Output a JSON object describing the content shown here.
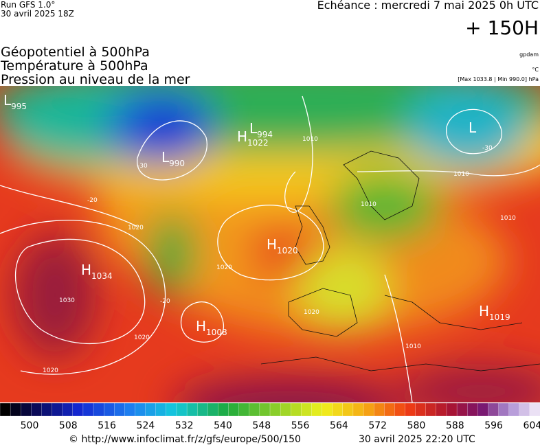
{
  "header": {
    "run": "Run GFS 1.0°",
    "date": "30 avril 2025 18Z",
    "echeance": "Echéance : mercredi 7 mai 2025 0h UTC",
    "lead": "+ 150H"
  },
  "fields": [
    "Géopotentiel à 500hPa",
    "Température à 500hPa",
    "Pression au niveau de la mer"
  ],
  "units": {
    "geopotential": "gpdam",
    "temperature": "°C",
    "pressure": "[Max 1033.8 | Min 990.0] hPa"
  },
  "map": {
    "centers": [
      {
        "type": "L",
        "value": "995"
      },
      {
        "type": "L",
        "value": "990"
      },
      {
        "type": "H",
        "value": "1022"
      },
      {
        "type": "L",
        "value": "994"
      },
      {
        "type": "L"
      },
      {
        "type": "H",
        "value": "1034"
      },
      {
        "type": "H",
        "value": "1020"
      },
      {
        "type": "H",
        "value": "1008"
      },
      {
        "type": "H",
        "value": "1019"
      }
    ],
    "contour_labels": [
      "1010",
      "1010",
      "1010",
      "1020",
      "1020",
      "1030",
      "1020",
      "1020",
      "1010",
      "1020",
      "-20",
      "-20",
      "-30",
      "-30",
      "1010"
    ]
  },
  "colorbar": {
    "labels": [
      "500",
      "508",
      "516",
      "524",
      "532",
      "540",
      "548",
      "556",
      "564",
      "572",
      "580",
      "588",
      "596",
      "604"
    ]
  },
  "footer": {
    "url": "© http://www.infoclimat.fr/z/gfs/europe/500/150",
    "timestamp": "30 avril 2025 22:20 UTC"
  }
}
